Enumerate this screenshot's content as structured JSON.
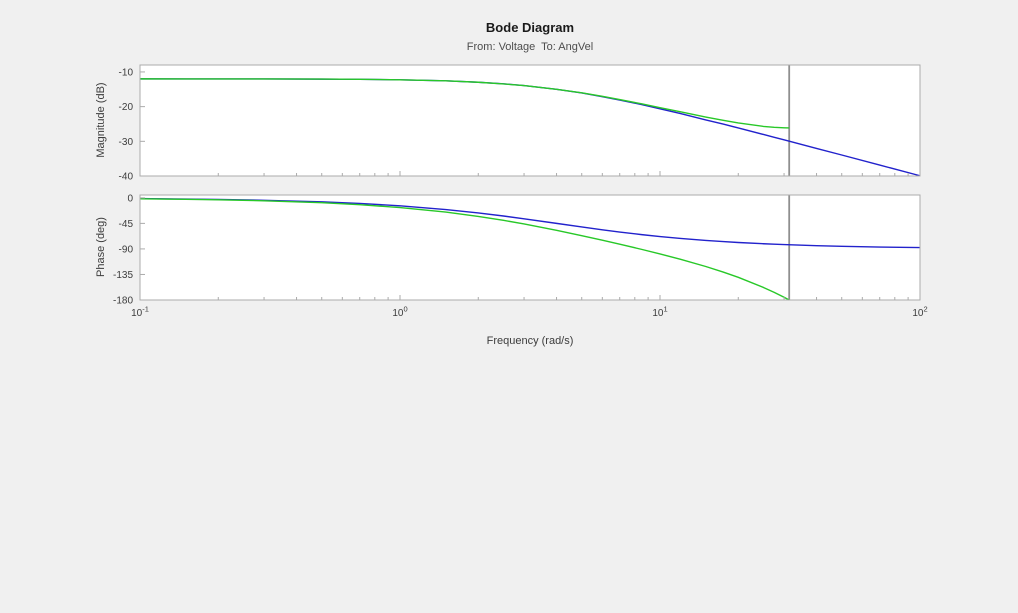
{
  "chart_data": {
    "type": "line",
    "title": "Bode Diagram",
    "subtitle": "From: Voltage  To: AngVel",
    "xlabel": "Frequency (rad/s)",
    "xscale": "log",
    "xlim": [
      0.1,
      100
    ],
    "xticks": [
      {
        "value": 0.1,
        "base": "10",
        "exp": "-1"
      },
      {
        "value": 1,
        "base": "10",
        "exp": "0"
      },
      {
        "value": 10,
        "base": "10",
        "exp": "1"
      },
      {
        "value": 100,
        "base": "10",
        "exp": "2"
      }
    ],
    "x_minor_ticks": [
      0.2,
      0.3,
      0.4,
      0.5,
      0.6,
      0.7,
      0.8,
      0.9,
      2,
      3,
      4,
      5,
      6,
      7,
      8,
      9,
      20,
      30,
      40,
      50,
      60,
      70,
      80,
      90
    ],
    "nyquist_line": {
      "x": 31.4,
      "color": "#8f8f8f"
    },
    "colors": {
      "figure_background": "#f0f0f0",
      "axes_background": "#ffffff",
      "axes_box": "#ababab",
      "tick_label": "#3c3c3c",
      "title_text": "#1a1a1a",
      "subtitle_text": "#4d4d4d",
      "series_blue": "#2222cc",
      "series_green": "#28c828"
    },
    "legend": "none",
    "grid": false,
    "subplots": [
      {
        "name": "magnitude",
        "ylabel": "Magnitude (dB)",
        "ylim": [
          -40,
          -8
        ],
        "yticks": [
          {
            "value": -10,
            "label": "-10"
          },
          {
            "value": -20,
            "label": "-20"
          },
          {
            "value": -30,
            "label": "-30"
          },
          {
            "value": -40,
            "label": "-40"
          }
        ],
        "series": [
          {
            "name": "series-1",
            "color": "#2222cc",
            "x": [
              0.1,
              0.15,
              0.2,
              0.3,
              0.5,
              0.7,
              1,
              1.5,
              2,
              2.5,
              3,
              4,
              5,
              6,
              7,
              8.5,
              10,
              12,
              15,
              17.5,
              20,
              25,
              27.5,
              30,
              40,
              50,
              70,
              100
            ],
            "y": [
              -12.0,
              -12.01,
              -12.01,
              -12.02,
              -12.07,
              -12.13,
              -12.26,
              -12.56,
              -12.97,
              -13.43,
              -13.92,
              -15.01,
              -16.07,
              -17.12,
              -18.1,
              -19.42,
              -20.62,
              -22.01,
              -23.83,
              -25.04,
              -26.16,
              -28.03,
              -28.84,
              -29.58,
              -32.04,
              -33.95,
              -36.85,
              -39.93
            ]
          },
          {
            "name": "series-2",
            "color": "#28c828",
            "x": [
              0.1,
              0.15,
              0.2,
              0.3,
              0.5,
              0.7,
              1,
              1.5,
              2,
              2.5,
              3,
              4,
              5,
              6,
              7,
              8.5,
              10,
              12,
              15,
              17.5,
              20,
              25,
              27.5,
              30,
              31.4
            ],
            "y": [
              -12.0,
              -12.01,
              -12.01,
              -12.02,
              -12.06,
              -12.12,
              -12.26,
              -12.55,
              -12.97,
              -13.45,
              -13.94,
              -15.0,
              -16.03,
              -17.03,
              -17.95,
              -19.2,
              -20.3,
              -21.5,
              -23.0,
              -23.95,
              -24.7,
              -25.7,
              -25.97,
              -26.1,
              -26.14
            ]
          }
        ]
      },
      {
        "name": "phase",
        "ylabel": "Phase (deg)",
        "ylim": [
          -180,
          5
        ],
        "yticks": [
          {
            "value": 0,
            "label": "0"
          },
          {
            "value": -45,
            "label": "-45"
          },
          {
            "value": -90,
            "label": "-90"
          },
          {
            "value": -135,
            "label": "-135"
          },
          {
            "value": -180,
            "label": "-180"
          }
        ],
        "series": [
          {
            "name": "series-1",
            "color": "#2222cc",
            "x": [
              0.1,
              0.15,
              0.2,
              0.3,
              0.5,
              0.7,
              1,
              1.5,
              2,
              2.5,
              3,
              4,
              5,
              6,
              7,
              8.5,
              10,
              12,
              15,
              17.5,
              20,
              25,
              27.5,
              30,
              40,
              50,
              70,
              100
            ],
            "y": [
              -1.4,
              -2.1,
              -2.9,
              -4.3,
              -7.1,
              -9.9,
              -14.0,
              -20.6,
              -26.6,
              -32.0,
              -36.9,
              -45.0,
              -51.3,
              -56.3,
              -60.3,
              -64.8,
              -68.2,
              -71.6,
              -75.1,
              -77.1,
              -78.7,
              -80.9,
              -81.7,
              -82.4,
              -84.3,
              -85.4,
              -86.7,
              -87.7
            ]
          },
          {
            "name": "series-2",
            "color": "#28c828",
            "x": [
              0.1,
              0.15,
              0.2,
              0.3,
              0.5,
              0.7,
              1,
              1.5,
              2,
              2.5,
              3,
              4,
              5,
              6,
              7,
              8.5,
              10,
              12,
              15,
              17.5,
              20,
              25,
              27.5,
              30,
              31.4
            ],
            "y": [
              -1.7,
              -2.6,
              -3.4,
              -5.2,
              -8.6,
              -12.0,
              -17.1,
              -25.1,
              -32.7,
              -39.6,
              -46.0,
              -57.2,
              -66.6,
              -74.6,
              -81.6,
              -90.8,
              -98.8,
              -108.3,
              -121.0,
              -130.8,
              -140.0,
              -157.9,
              -166.5,
              -175.1,
              -180.0
            ]
          }
        ]
      }
    ]
  }
}
